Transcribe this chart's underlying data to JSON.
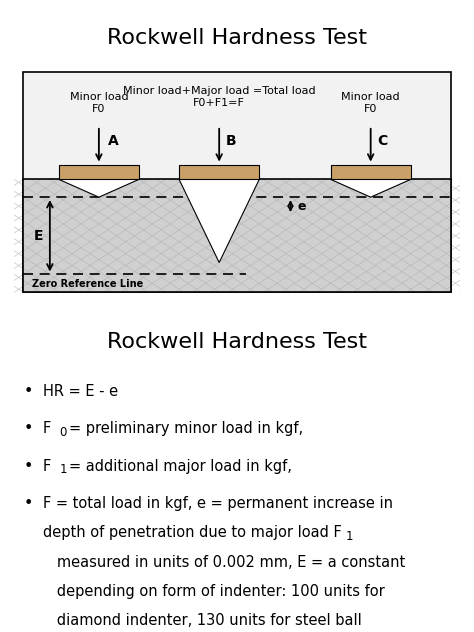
{
  "title1": "Rockwell Hardness Test",
  "title2": "Rockwell Hardness Test",
  "bg_color": "#ffffff",
  "material_color": "#c8a068",
  "minor_load_text_A": "Minor load\nF0",
  "minor_load_text_C": "Minor load\nF0",
  "center_text": "Minor load+Major load =Total load\nF0+F1=F",
  "zero_ref": "Zero Reference Line",
  "font_size_title": 16,
  "font_size_diagram": 8,
  "font_size_bullet": 10.5
}
